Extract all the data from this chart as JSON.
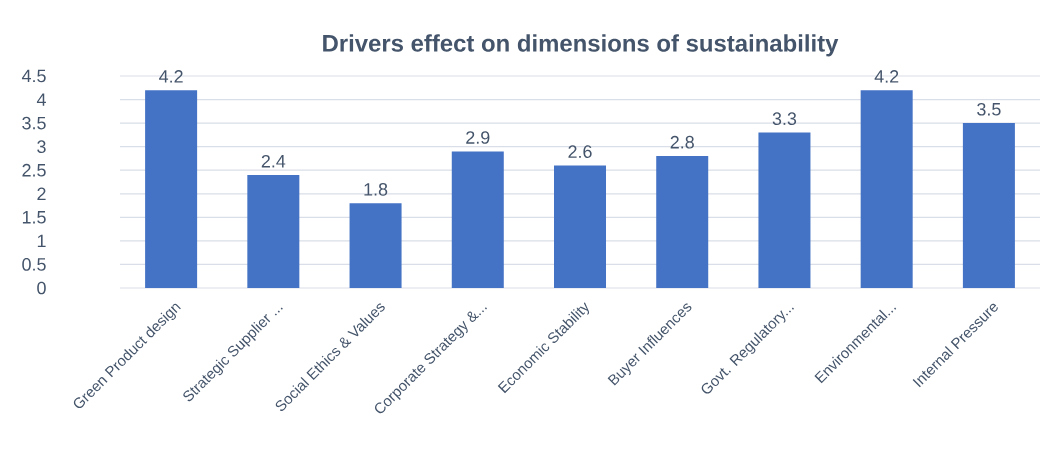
{
  "chart_data": {
    "type": "bar",
    "title": "Drivers effect on dimensions of sustainability",
    "categories": [
      "Green Product design",
      "Strategic Supplier ...",
      "Social Ethics & Values",
      "Corporate Strategy &...",
      "Economic Stability",
      "Buyer Influences",
      "Govt. Regulatory...",
      "Environmental...",
      "Internal Pressure"
    ],
    "values": [
      4.2,
      2.4,
      1.8,
      2.9,
      2.6,
      2.8,
      3.3,
      4.2,
      3.5
    ],
    "color": "#4472c4",
    "ylim": [
      0,
      4.5
    ],
    "yticks": [
      0,
      0.5,
      1,
      1.5,
      2,
      2.5,
      3,
      3.5,
      4,
      4.5
    ],
    "grid": "y",
    "data_labels": true
  }
}
